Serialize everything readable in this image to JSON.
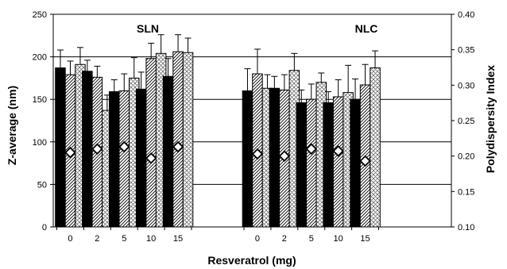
{
  "chart_data": {
    "type": "bar",
    "xlabel": "Resveratrol (mg)",
    "ylabel": "Z-average (nm)",
    "y2label": "Polydispersity Index",
    "ylim": [
      0,
      250
    ],
    "y2lim": [
      0.1,
      0.4
    ],
    "yticks": [
      "0",
      "50",
      "100",
      "150",
      "200",
      "250"
    ],
    "y2ticks": [
      "0.10",
      "0.15",
      "0.20",
      "0.25",
      "0.30",
      "0.35",
      "0.40"
    ],
    "grid": true,
    "groups": [
      {
        "name": "SLN",
        "categories": [
          "0",
          "2",
          "5",
          "10",
          "15"
        ],
        "series": [
          {
            "pattern": "solid",
            "values": [
              187,
              183,
              159,
              162,
              177
            ],
            "errors": [
              21,
              13,
              14,
              20,
              21
            ]
          },
          {
            "pattern": "hatch",
            "values": [
              179,
              176,
              160,
              198,
              206
            ],
            "errors": [
              16,
              13,
              20,
              18,
              20
            ]
          },
          {
            "pattern": "crosshatch",
            "values": [
              191,
              137,
              175,
              204,
              205
            ],
            "errors": [
              20,
              18,
              24,
              22,
              17
            ]
          }
        ],
        "pdi": [
          0.205,
          0.21,
          0.213,
          0.197,
          0.213
        ]
      },
      {
        "name": "NLC",
        "categories": [
          "0",
          "2",
          "5",
          "10",
          "15"
        ],
        "series": [
          {
            "pattern": "solid",
            "values": [
              160,
              163,
              146,
              146,
              150
            ],
            "errors": [
              26,
              14,
              15,
              13,
              24
            ]
          },
          {
            "pattern": "hatch",
            "values": [
              180,
              161,
              150,
              153,
              167
            ],
            "errors": [
              29,
              18,
              18,
              20,
              24
            ]
          },
          {
            "pattern": "crosshatch",
            "values": [
              163,
              184,
              170,
              158,
              187
            ],
            "errors": [
              16,
              20,
              11,
              32,
              20
            ]
          }
        ],
        "pdi": [
          0.203,
          0.2,
          0.21,
          0.207,
          0.193
        ]
      }
    ]
  }
}
